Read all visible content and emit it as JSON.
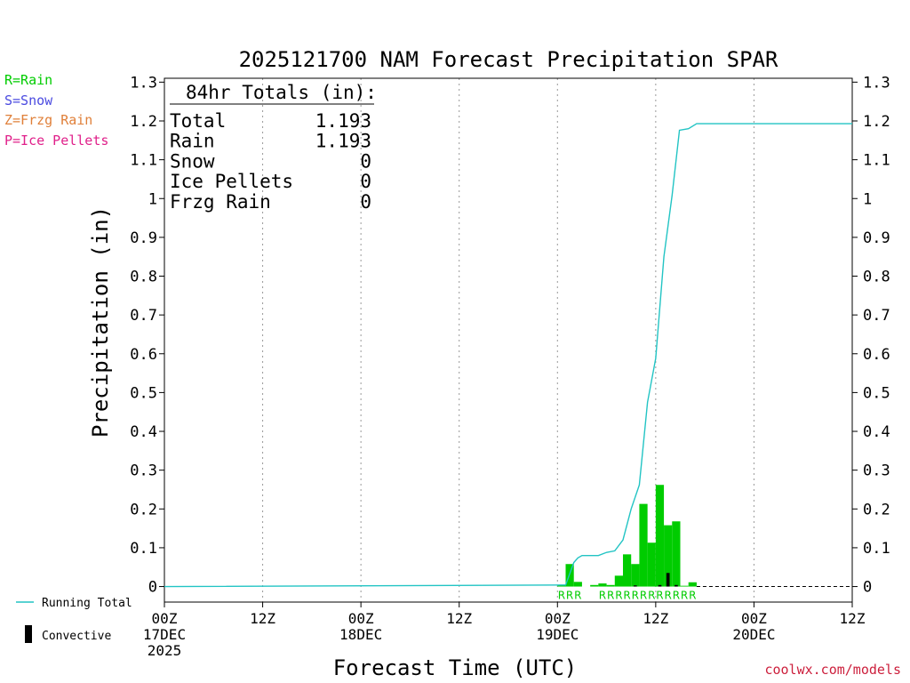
{
  "colors": {
    "rain": "#00cc00",
    "snow": "#4a4ae0",
    "frzg_rain": "#e0803a",
    "ice_pellets": "#e0208a",
    "running_total": "#22c4c4",
    "convective": "#000000",
    "credit": "#cc1f3c"
  },
  "legend": {
    "rain": "R=Rain",
    "snow": "S=Snow",
    "frzg_rain": "Z=Frzg Rain",
    "ice_pellets": "P=Ice Pellets",
    "running_total": "Running Total",
    "convective": "Convective"
  },
  "totals_box": {
    "header": "84hr Totals (in):",
    "rows": [
      {
        "label": "Total",
        "value": "1.193"
      },
      {
        "label": "Rain",
        "value": "1.193"
      },
      {
        "label": "Snow",
        "value": "0"
      },
      {
        "label": "Ice Pellets",
        "value": "0"
      },
      {
        "label": "Frzg Rain",
        "value": "0"
      }
    ]
  },
  "credit": "coolwx.com/models",
  "chart_data": {
    "type": "bar",
    "title": "2025121700 NAM Forecast Precipitation SPAR",
    "xlabel": "Forecast Time (UTC)",
    "ylabel": "Precipitation (in)",
    "x_unit": "forecast hour",
    "xlim": [
      0,
      84
    ],
    "ylim": [
      -0.04,
      1.31
    ],
    "yticks": [
      0,
      0.1,
      0.2,
      0.3,
      0.4,
      0.5,
      0.6,
      0.7,
      0.8,
      0.9,
      1,
      1.1,
      1.2,
      1.3
    ],
    "ytick_labels": [
      "0",
      "0.1",
      "0.2",
      "0.3",
      "0.4",
      "0.5",
      "0.6",
      "0.7",
      "0.8",
      "0.9",
      "1",
      "1.1",
      "1.2",
      "1.3"
    ],
    "xticks": [
      {
        "hour": 0,
        "lines": [
          "00Z",
          "17DEC",
          "2025"
        ]
      },
      {
        "hour": 12,
        "lines": [
          "12Z"
        ]
      },
      {
        "hour": 24,
        "lines": [
          "00Z",
          "18DEC"
        ]
      },
      {
        "hour": 36,
        "lines": [
          "12Z"
        ]
      },
      {
        "hour": 48,
        "lines": [
          "00Z",
          "19DEC"
        ]
      },
      {
        "hour": 60,
        "lines": [
          "12Z"
        ]
      },
      {
        "hour": 72,
        "lines": [
          "00Z",
          "20DEC"
        ]
      },
      {
        "hour": 84,
        "lines": [
          "12Z"
        ]
      }
    ],
    "series": [
      {
        "name": "Rain",
        "kind": "bar",
        "bar_width_hours": 1,
        "points": [
          {
            "hour": 49,
            "value": 0.004
          },
          {
            "hour": 50,
            "value": 0.058
          },
          {
            "hour": 51,
            "value": 0.012
          },
          {
            "hour": 53,
            "value": 0.004
          },
          {
            "hour": 54,
            "value": 0.008
          },
          {
            "hour": 55,
            "value": 0.004
          },
          {
            "hour": 56,
            "value": 0.028
          },
          {
            "hour": 57,
            "value": 0.083
          },
          {
            "hour": 58,
            "value": 0.058
          },
          {
            "hour": 59,
            "value": 0.213
          },
          {
            "hour": 60,
            "value": 0.113
          },
          {
            "hour": 61,
            "value": 0.262
          },
          {
            "hour": 62,
            "value": 0.158
          },
          {
            "hour": 63,
            "value": 0.168
          },
          {
            "hour": 64,
            "value": 0.002
          },
          {
            "hour": 65,
            "value": 0.011
          }
        ]
      },
      {
        "name": "Convective",
        "kind": "bar",
        "bar_width_hours": 0.4,
        "points": [
          {
            "hour": 58,
            "value": 0.003
          },
          {
            "hour": 61,
            "value": 0.004
          },
          {
            "hour": 62,
            "value": 0.035
          },
          {
            "hour": 63,
            "value": 0.004
          }
        ]
      },
      {
        "name": "Running Total",
        "kind": "line",
        "points": [
          {
            "hour": 0,
            "value": 0
          },
          {
            "hour": 49,
            "value": 0.004
          },
          {
            "hour": 50,
            "value": 0.062
          },
          {
            "hour": 50.5,
            "value": 0.074
          },
          {
            "hour": 51,
            "value": 0.08
          },
          {
            "hour": 53,
            "value": 0.08
          },
          {
            "hour": 54,
            "value": 0.088
          },
          {
            "hour": 55,
            "value": 0.092
          },
          {
            "hour": 56,
            "value": 0.12
          },
          {
            "hour": 57,
            "value": 0.2
          },
          {
            "hour": 58,
            "value": 0.262
          },
          {
            "hour": 59,
            "value": 0.475
          },
          {
            "hour": 60,
            "value": 0.588
          },
          {
            "hour": 61,
            "value": 0.85
          },
          {
            "hour": 62,
            "value": 1.008
          },
          {
            "hour": 62.9,
            "value": 1.176
          },
          {
            "hour": 64,
            "value": 1.18
          },
          {
            "hour": 65,
            "value": 1.193
          },
          {
            "hour": 84,
            "value": 1.193
          }
        ]
      }
    ],
    "ptype_labels": [
      {
        "hour": 49,
        "text": "R"
      },
      {
        "hour": 50,
        "text": "R"
      },
      {
        "hour": 51,
        "text": "R"
      },
      {
        "hour": 54,
        "text": "R"
      },
      {
        "hour": 55,
        "text": "R"
      },
      {
        "hour": 56,
        "text": "R"
      },
      {
        "hour": 57,
        "text": "R"
      },
      {
        "hour": 58,
        "text": "R"
      },
      {
        "hour": 59,
        "text": "R"
      },
      {
        "hour": 60,
        "text": "R"
      },
      {
        "hour": 61,
        "text": "R"
      },
      {
        "hour": 62,
        "text": "R"
      },
      {
        "hour": 63,
        "text": "R"
      },
      {
        "hour": 64,
        "text": "R"
      },
      {
        "hour": 65,
        "text": "R"
      }
    ]
  }
}
